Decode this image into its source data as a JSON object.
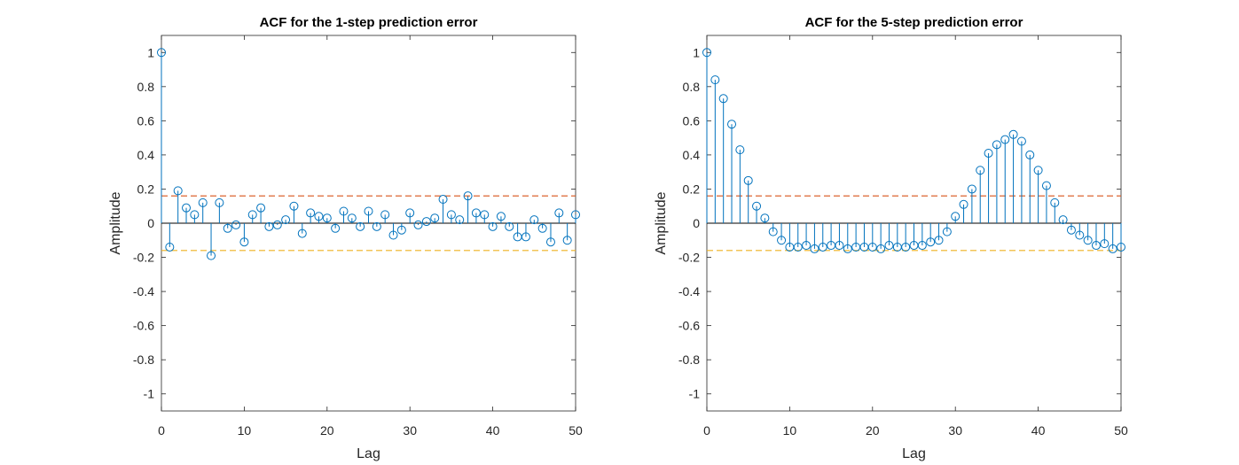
{
  "chart_data": [
    {
      "type": "stem",
      "title": "ACF for the 1-step prediction error",
      "xlabel": "Lag",
      "ylabel": "Amplitude",
      "xlim": [
        0,
        50
      ],
      "ylim": [
        -1.1,
        1.1
      ],
      "xticks": [
        0,
        10,
        20,
        30,
        40,
        50
      ],
      "yticks": [
        -1,
        -0.8,
        -0.6,
        -0.4,
        -0.2,
        0,
        0.2,
        0.4,
        0.6,
        0.8,
        1
      ],
      "x": [
        0,
        1,
        2,
        3,
        4,
        5,
        6,
        7,
        8,
        9,
        10,
        11,
        12,
        13,
        14,
        15,
        16,
        17,
        18,
        19,
        20,
        21,
        22,
        23,
        24,
        25,
        26,
        27,
        28,
        29,
        30,
        31,
        32,
        33,
        34,
        35,
        36,
        37,
        38,
        39,
        40,
        41,
        42,
        43,
        44,
        45,
        46,
        47,
        48,
        49,
        50
      ],
      "values": [
        1.0,
        -0.14,
        0.19,
        0.09,
        0.05,
        0.12,
        -0.19,
        0.12,
        -0.03,
        -0.01,
        -0.11,
        0.05,
        0.09,
        -0.02,
        -0.01,
        0.02,
        0.1,
        -0.06,
        0.06,
        0.04,
        0.03,
        -0.03,
        0.07,
        0.03,
        -0.02,
        0.07,
        -0.02,
        0.05,
        -0.07,
        -0.04,
        0.06,
        -0.01,
        0.01,
        0.03,
        0.14,
        0.05,
        0.02,
        0.16,
        0.06,
        0.05,
        -0.02,
        0.04,
        -0.02,
        -0.08,
        -0.08,
        0.02,
        -0.03,
        -0.11,
        0.06,
        -0.1,
        0.05
      ],
      "bounds": {
        "upper": 0.16,
        "lower": -0.16
      },
      "colors": {
        "stem": "#0072BD",
        "upper": "#D95319",
        "lower": "#EDB120"
      }
    },
    {
      "type": "stem",
      "title": "ACF for the 5-step prediction error",
      "xlabel": "Lag",
      "ylabel": "Amplitude",
      "xlim": [
        0,
        50
      ],
      "ylim": [
        -1.1,
        1.1
      ],
      "xticks": [
        0,
        10,
        20,
        30,
        40,
        50
      ],
      "yticks": [
        -1,
        -0.8,
        -0.6,
        -0.4,
        -0.2,
        0,
        0.2,
        0.4,
        0.6,
        0.8,
        1
      ],
      "x": [
        0,
        1,
        2,
        3,
        4,
        5,
        6,
        7,
        8,
        9,
        10,
        11,
        12,
        13,
        14,
        15,
        16,
        17,
        18,
        19,
        20,
        21,
        22,
        23,
        24,
        25,
        26,
        27,
        28,
        29,
        30,
        31,
        32,
        33,
        34,
        35,
        36,
        37,
        38,
        39,
        40,
        41,
        42,
        43,
        44,
        45,
        46,
        47,
        48,
        49,
        50
      ],
      "values": [
        1.0,
        0.84,
        0.73,
        0.58,
        0.43,
        0.25,
        0.1,
        0.03,
        -0.05,
        -0.1,
        -0.14,
        -0.14,
        -0.13,
        -0.15,
        -0.14,
        -0.13,
        -0.13,
        -0.15,
        -0.14,
        -0.14,
        -0.14,
        -0.15,
        -0.13,
        -0.14,
        -0.14,
        -0.13,
        -0.13,
        -0.11,
        -0.1,
        -0.05,
        0.04,
        0.11,
        0.2,
        0.31,
        0.41,
        0.46,
        0.49,
        0.52,
        0.48,
        0.4,
        0.31,
        0.22,
        0.12,
        0.02,
        -0.04,
        -0.07,
        -0.1,
        -0.13,
        -0.12,
        -0.15,
        -0.14
      ],
      "bounds": {
        "upper": 0.16,
        "lower": -0.16
      },
      "colors": {
        "stem": "#0072BD",
        "upper": "#D95319",
        "lower": "#EDB120"
      }
    }
  ]
}
